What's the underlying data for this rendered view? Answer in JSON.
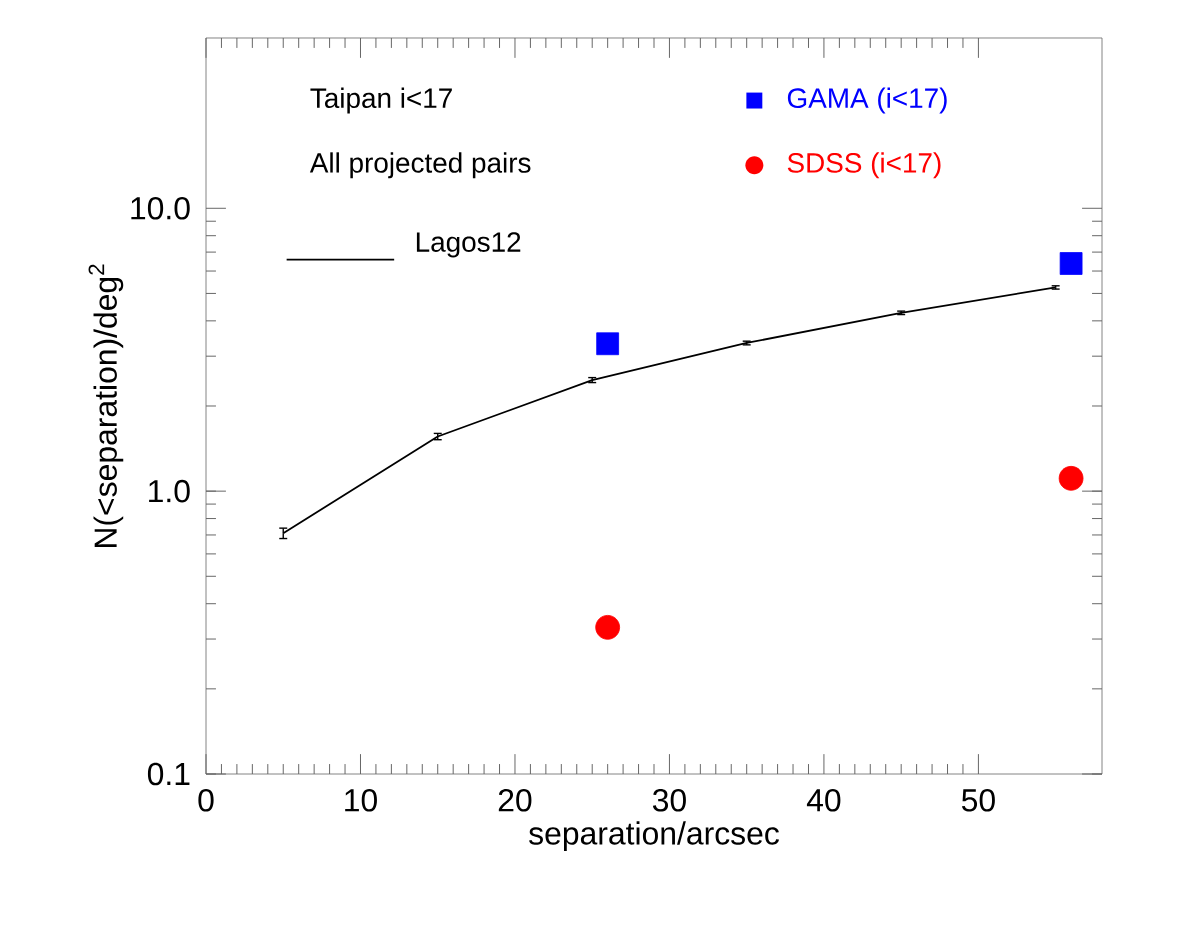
{
  "chart_data": {
    "type": "line",
    "xlabel": "separation/arcsec",
    "ylabel": "N(<separation)/deg$^{2}$",
    "annotations": [
      "Taipan i<17",
      "All projected pairs"
    ],
    "xlim": [
      0,
      58
    ],
    "xticks": [
      0,
      10,
      20,
      30,
      40,
      50
    ],
    "ylim": [
      0.1,
      40
    ],
    "yticks": [
      {
        "value": 0.1,
        "label": "0.1"
      },
      {
        "value": 1,
        "label": "1.0"
      },
      {
        "value": 10,
        "label": "10.0"
      }
    ],
    "log": "y",
    "grid": false,
    "legend": "top",
    "series": [
      {
        "name": "Lagos12",
        "color": "#000000",
        "marker": "none",
        "line_style": "solid",
        "x": [
          5,
          15,
          25,
          35,
          45,
          55
        ],
        "values": [
          0.71,
          1.56,
          2.47,
          3.34,
          4.27,
          5.25
        ],
        "errors": [
          0.03,
          0.04,
          0.05,
          0.05,
          0.06,
          0.07
        ]
      },
      {
        "name": "GAMA (i<17)",
        "type": "scatter",
        "color": "#0000ff",
        "marker": "square",
        "x": [
          26,
          56
        ],
        "values": [
          3.32,
          6.38
        ]
      },
      {
        "name": "SDSS (i<17)",
        "type": "scatter",
        "color": "#ff0000",
        "marker": "circle",
        "x": [
          26,
          56
        ],
        "values": [
          0.33,
          1.11
        ]
      }
    ]
  }
}
